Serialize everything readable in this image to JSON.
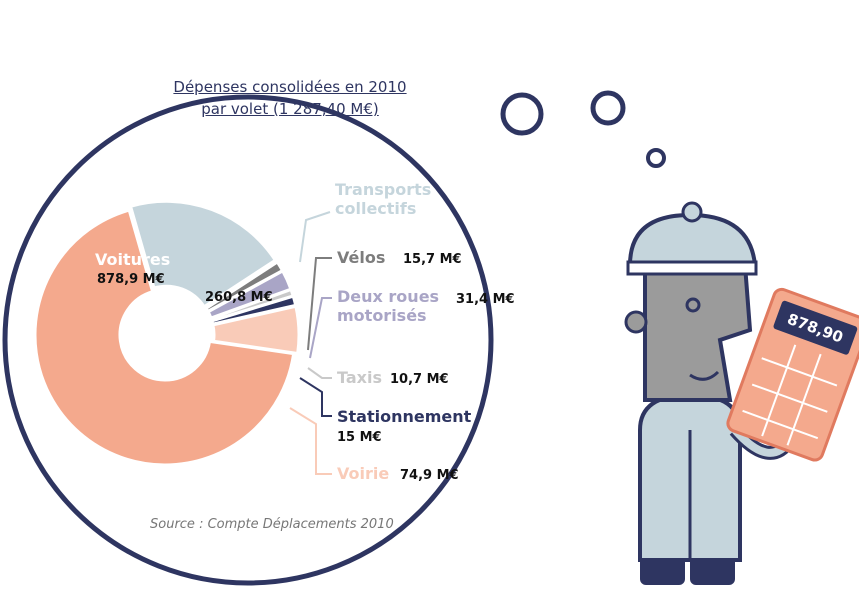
{
  "calculator_display": "878,90",
  "chart_data": {
    "type": "pie",
    "donut": true,
    "title": "Dépenses consolidées en 2010",
    "subtitle": "par volet (1 287,40 M€)",
    "source": "Source : Compte Déplacements 2010",
    "categories": [
      "Transports collectifs",
      "Vélos",
      "Deux roues motorisés",
      "Taxis",
      "Stationnement",
      "Voirie",
      "Voitures"
    ],
    "values": [
      260.8,
      15.7,
      31.4,
      10.7,
      15,
      74.9,
      878.9
    ],
    "value_labels": [
      "260,8 M€",
      "15,7 M€",
      "31,4 M€",
      "10,7 M€",
      "15 M€",
      "74,9 M€",
      "878,9 M€"
    ],
    "colors": [
      "#c5d5dc",
      "#7d7d7d",
      "#a9a5c6",
      "#c9c9c9",
      "#2e3561",
      "#f9cbb8",
      "#f4a98d"
    ]
  }
}
